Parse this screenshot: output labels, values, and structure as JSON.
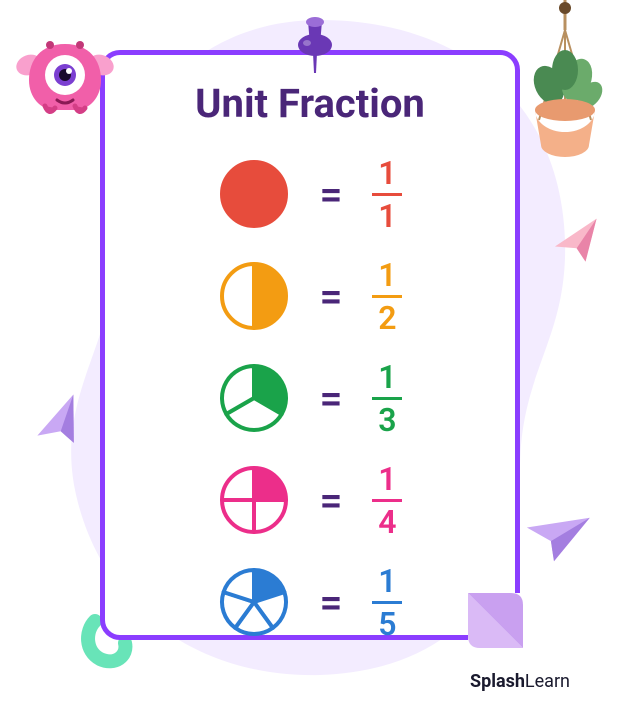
{
  "title": "Unit Fraction",
  "eq_symbol": "=",
  "brand": {
    "bold": "Splash",
    "light": "Learn"
  },
  "background": {
    "blob_color": "#f3ecff",
    "card_border": "#8b3dff",
    "card_bg": "#ffffff",
    "title_color": "#4a2678",
    "eq_color": "#4a2678"
  },
  "fractions": [
    {
      "numerator": "1",
      "denominator": "1",
      "color": "#e74c3c",
      "slices": 1,
      "filled": 1,
      "circle_stroke": "#e74c3c"
    },
    {
      "numerator": "1",
      "denominator": "2",
      "color": "#f39c12",
      "slices": 2,
      "filled": 1,
      "circle_stroke": "#f39c12"
    },
    {
      "numerator": "1",
      "denominator": "3",
      "color": "#1aa34a",
      "slices": 3,
      "filled": 1,
      "circle_stroke": "#1aa34a"
    },
    {
      "numerator": "1",
      "denominator": "4",
      "color": "#ec2e8a",
      "slices": 4,
      "filled": 1,
      "circle_stroke": "#ec2e8a"
    },
    {
      "numerator": "1",
      "denominator": "5",
      "color": "#2b7cd3",
      "slices": 5,
      "filled": 1,
      "circle_stroke": "#2b7cd3"
    }
  ],
  "decor": {
    "pin_color": "#6a38b5",
    "pin_highlight": "#9b6dd7",
    "monster_body": "#f15fa9",
    "monster_body2": "#f9a0cd",
    "monster_eye_outer": "#ffffff",
    "monster_eye_iris": "#7b3fd1",
    "plant_pot": "#f4b089",
    "plant_leaf": "#4a8a52",
    "plant_leaf2": "#6bab6b",
    "plant_string": "#b89060",
    "plane_pink": "#f9b8c9",
    "plane_pink_dk": "#e984a8",
    "plane_purple": "#c9a8f4",
    "plane_purple_dk": "#a47ee0",
    "squiggle_color": "#68e4b8",
    "fold_front": "#c9a0f0",
    "fold_back": "#dabaf6"
  }
}
